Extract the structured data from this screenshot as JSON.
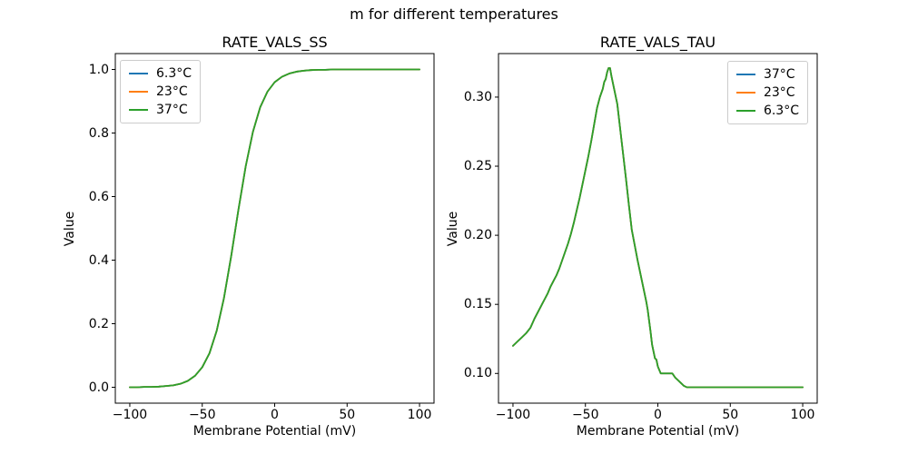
{
  "figure": {
    "suptitle": "m for different temperatures",
    "background": "#ffffff"
  },
  "colors": {
    "blue": "#1f77b4",
    "orange": "#ff7f0e",
    "green": "#2ca02c",
    "legend_edge": "#cccccc",
    "axes_edge": "#000000"
  },
  "chart_data": [
    {
      "type": "line",
      "title": "RATE_VALS_SS",
      "xlabel": "Membrane Potential (mV)",
      "ylabel": "Value",
      "xlim": [
        -110,
        110
      ],
      "ylim": [
        -0.05,
        1.05
      ],
      "xticks": [
        -100,
        -50,
        0,
        50,
        100
      ],
      "xtick_labels": [
        "−100",
        "−50",
        "0",
        "50",
        "100"
      ],
      "yticks": [
        0.0,
        0.2,
        0.4,
        0.6,
        0.8,
        1.0
      ],
      "ytick_labels": [
        "0.0",
        "0.2",
        "0.4",
        "0.6",
        "0.8",
        "1.0"
      ],
      "grid": false,
      "legend_position": "upper-left",
      "x": [
        -100,
        -95,
        -90,
        -85,
        -80,
        -75,
        -70,
        -65,
        -60,
        -55,
        -50,
        -45,
        -40,
        -35,
        -30,
        -25,
        -20,
        -15,
        -10,
        -5,
        0,
        5,
        10,
        15,
        20,
        25,
        30,
        35,
        40,
        45,
        50,
        55,
        60,
        65,
        70,
        75,
        80,
        85,
        90,
        95,
        100
      ],
      "series": [
        {
          "name": "6.3°C",
          "color": "#1f77b4",
          "values": [
            0.0,
            0.0,
            0.001,
            0.001,
            0.002,
            0.004,
            0.006,
            0.011,
            0.02,
            0.036,
            0.063,
            0.107,
            0.178,
            0.281,
            0.413,
            0.559,
            0.695,
            0.804,
            0.881,
            0.93,
            0.96,
            0.977,
            0.987,
            0.993,
            0.996,
            0.998,
            0.999,
            0.999,
            1.0,
            1.0,
            1.0,
            1.0,
            1.0,
            1.0,
            1.0,
            1.0,
            1.0,
            1.0,
            1.0,
            1.0,
            1.0
          ]
        },
        {
          "name": "23°C",
          "color": "#ff7f0e",
          "values": [
            0.0,
            0.0,
            0.001,
            0.001,
            0.002,
            0.004,
            0.006,
            0.011,
            0.02,
            0.036,
            0.063,
            0.107,
            0.178,
            0.281,
            0.413,
            0.559,
            0.695,
            0.804,
            0.881,
            0.93,
            0.96,
            0.977,
            0.987,
            0.993,
            0.996,
            0.998,
            0.999,
            0.999,
            1.0,
            1.0,
            1.0,
            1.0,
            1.0,
            1.0,
            1.0,
            1.0,
            1.0,
            1.0,
            1.0,
            1.0,
            1.0
          ]
        },
        {
          "name": "37°C",
          "color": "#2ca02c",
          "values": [
            0.0,
            0.0,
            0.001,
            0.001,
            0.002,
            0.004,
            0.006,
            0.011,
            0.02,
            0.036,
            0.063,
            0.107,
            0.178,
            0.281,
            0.413,
            0.559,
            0.695,
            0.804,
            0.881,
            0.93,
            0.96,
            0.977,
            0.987,
            0.993,
            0.996,
            0.998,
            0.999,
            0.999,
            1.0,
            1.0,
            1.0,
            1.0,
            1.0,
            1.0,
            1.0,
            1.0,
            1.0,
            1.0,
            1.0,
            1.0,
            1.0
          ]
        }
      ]
    },
    {
      "type": "line",
      "title": "RATE_VALS_TAU",
      "xlabel": "Membrane Potential (mV)",
      "ylabel": "Value",
      "xlim": [
        -110,
        110
      ],
      "ylim": [
        0.0785,
        0.3315
      ],
      "xticks": [
        -100,
        -50,
        0,
        50,
        100
      ],
      "xtick_labels": [
        "−100",
        "−50",
        "0",
        "50",
        "100"
      ],
      "yticks": [
        0.1,
        0.15,
        0.2,
        0.25,
        0.3
      ],
      "ytick_labels": [
        "0.10",
        "0.15",
        "0.20",
        "0.25",
        "0.30"
      ],
      "grid": false,
      "legend_position": "upper-right",
      "x": [
        -100,
        -97,
        -94,
        -91,
        -88,
        -85,
        -82,
        -80,
        -78,
        -76,
        -74,
        -72,
        -70,
        -68,
        -66,
        -64,
        -62,
        -60,
        -58,
        -56,
        -54,
        -52,
        -50,
        -48,
        -46,
        -44,
        -42,
        -40,
        -38,
        -37,
        -36,
        -35,
        -34,
        -33,
        -32,
        -31,
        -30,
        -28,
        -26,
        -24,
        -22,
        -20,
        -18,
        -16,
        -14,
        -12,
        -10,
        -8,
        -7,
        -6,
        -5,
        -4,
        -3,
        -2,
        -1,
        0,
        2,
        4,
        6,
        8,
        9,
        10,
        12,
        14,
        16,
        18,
        20,
        25,
        30,
        40,
        50,
        60,
        70,
        80,
        90,
        100
      ],
      "series": [
        {
          "name": "37°C",
          "color": "#1f77b4",
          "values": [
            0.12,
            0.123,
            0.126,
            0.129,
            0.133,
            0.14,
            0.146,
            0.15,
            0.154,
            0.158,
            0.163,
            0.167,
            0.171,
            0.176,
            0.182,
            0.188,
            0.194,
            0.201,
            0.209,
            0.218,
            0.227,
            0.237,
            0.247,
            0.257,
            0.268,
            0.28,
            0.292,
            0.3,
            0.306,
            0.311,
            0.313,
            0.318,
            0.321,
            0.321,
            0.315,
            0.31,
            0.305,
            0.295,
            0.277,
            0.259,
            0.241,
            0.222,
            0.204,
            0.193,
            0.182,
            0.172,
            0.162,
            0.152,
            0.146,
            0.138,
            0.13,
            0.121,
            0.116,
            0.111,
            0.11,
            0.105,
            0.1,
            0.1,
            0.1,
            0.1,
            0.1,
            0.1,
            0.097,
            0.095,
            0.093,
            0.091,
            0.09,
            0.09,
            0.09,
            0.09,
            0.09,
            0.09,
            0.09,
            0.09,
            0.09,
            0.09
          ]
        },
        {
          "name": "23°C",
          "color": "#ff7f0e",
          "values": [
            0.12,
            0.123,
            0.126,
            0.129,
            0.133,
            0.14,
            0.146,
            0.15,
            0.154,
            0.158,
            0.163,
            0.167,
            0.171,
            0.176,
            0.182,
            0.188,
            0.194,
            0.201,
            0.209,
            0.218,
            0.227,
            0.237,
            0.247,
            0.257,
            0.268,
            0.28,
            0.292,
            0.3,
            0.306,
            0.311,
            0.313,
            0.318,
            0.321,
            0.321,
            0.315,
            0.31,
            0.305,
            0.295,
            0.277,
            0.259,
            0.241,
            0.222,
            0.204,
            0.193,
            0.182,
            0.172,
            0.162,
            0.152,
            0.146,
            0.138,
            0.13,
            0.121,
            0.116,
            0.111,
            0.11,
            0.105,
            0.1,
            0.1,
            0.1,
            0.1,
            0.1,
            0.1,
            0.097,
            0.095,
            0.093,
            0.091,
            0.09,
            0.09,
            0.09,
            0.09,
            0.09,
            0.09,
            0.09,
            0.09,
            0.09,
            0.09
          ]
        },
        {
          "name": "6.3°C",
          "color": "#2ca02c",
          "values": [
            0.12,
            0.123,
            0.126,
            0.129,
            0.133,
            0.14,
            0.146,
            0.15,
            0.154,
            0.158,
            0.163,
            0.167,
            0.171,
            0.176,
            0.182,
            0.188,
            0.194,
            0.201,
            0.209,
            0.218,
            0.227,
            0.237,
            0.247,
            0.257,
            0.268,
            0.28,
            0.292,
            0.3,
            0.306,
            0.311,
            0.313,
            0.318,
            0.321,
            0.321,
            0.315,
            0.31,
            0.305,
            0.295,
            0.277,
            0.259,
            0.241,
            0.222,
            0.204,
            0.193,
            0.182,
            0.172,
            0.162,
            0.152,
            0.146,
            0.138,
            0.13,
            0.121,
            0.116,
            0.111,
            0.11,
            0.105,
            0.1,
            0.1,
            0.1,
            0.1,
            0.1,
            0.1,
            0.097,
            0.095,
            0.093,
            0.091,
            0.09,
            0.09,
            0.09,
            0.09,
            0.09,
            0.09,
            0.09,
            0.09,
            0.09,
            0.09
          ]
        }
      ]
    }
  ]
}
